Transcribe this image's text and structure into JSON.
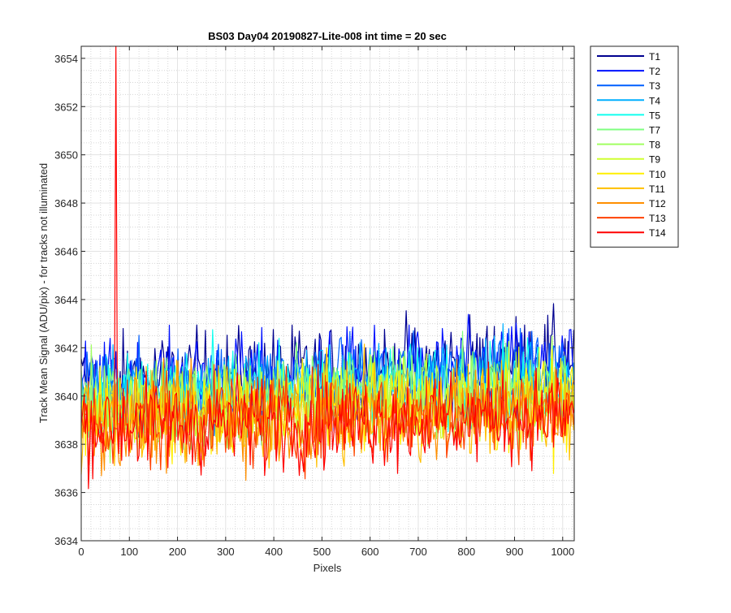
{
  "chart_data": {
    "type": "line",
    "title": "BS03 Day04 20190827-Lite-008 int time = 20 sec",
    "xlabel": "Pixels",
    "ylabel": "Track Mean Signal (ADU/pix) - for tracks not illuminated",
    "xlim": [
      0,
      1024
    ],
    "ylim": [
      3634,
      3654.5
    ],
    "x_ticks": [
      "0",
      "100",
      "200",
      "300",
      "400",
      "500",
      "600",
      "700",
      "800",
      "900",
      "1000"
    ],
    "y_ticks": [
      "3634",
      "3636",
      "3638",
      "3640",
      "3642",
      "3644",
      "3646",
      "3648",
      "3650",
      "3652",
      "3654"
    ],
    "grid": "major and minor",
    "legend_position": "outside-top-right",
    "x": [
      0,
      1023
    ],
    "series": [
      {
        "name": "T1",
        "color": "#00008f",
        "mean": 3640.6,
        "mean_end": 3641.6,
        "spread": 1.25
      },
      {
        "name": "T2",
        "color": "#0010ff",
        "mean": 3640.4,
        "mean_end": 3641.3,
        "spread": 1.25
      },
      {
        "name": "T3",
        "color": "#005fff",
        "mean": 3640.2,
        "mean_end": 3641.0,
        "spread": 1.2
      },
      {
        "name": "T4",
        "color": "#00afff",
        "mean": 3640.1,
        "mean_end": 3640.8,
        "spread": 1.2
      },
      {
        "name": "T5",
        "color": "#10ffef",
        "mean": 3640.0,
        "mean_end": 3640.6,
        "spread": 1.2
      },
      {
        "name": "T7",
        "color": "#7fff80",
        "mean": 3639.8,
        "mean_end": 3640.3,
        "spread": 1.2
      },
      {
        "name": "T8",
        "color": "#a0ff60",
        "mean": 3639.6,
        "mean_end": 3640.1,
        "spread": 1.2
      },
      {
        "name": "T9",
        "color": "#cfff30",
        "mean": 3639.4,
        "mean_end": 3639.9,
        "spread": 1.25
      },
      {
        "name": "T10",
        "color": "#ffef00",
        "mean": 3639.2,
        "mean_end": 3639.7,
        "spread": 1.3
      },
      {
        "name": "T11",
        "color": "#ffbf00",
        "mean": 3639.0,
        "mean_end": 3639.5,
        "spread": 1.3
      },
      {
        "name": "T12",
        "color": "#ff8f00",
        "mean": 3638.9,
        "mean_end": 3639.4,
        "spread": 1.3
      },
      {
        "name": "T13",
        "color": "#ff4000",
        "mean": 3638.8,
        "mean_end": 3639.3,
        "spread": 1.3
      },
      {
        "name": "T14",
        "color": "#ff0000",
        "mean": 3638.8,
        "mean_end": 3639.2,
        "spread": 1.3,
        "spike": {
          "x": 72,
          "y": 3654.5
        }
      }
    ]
  }
}
